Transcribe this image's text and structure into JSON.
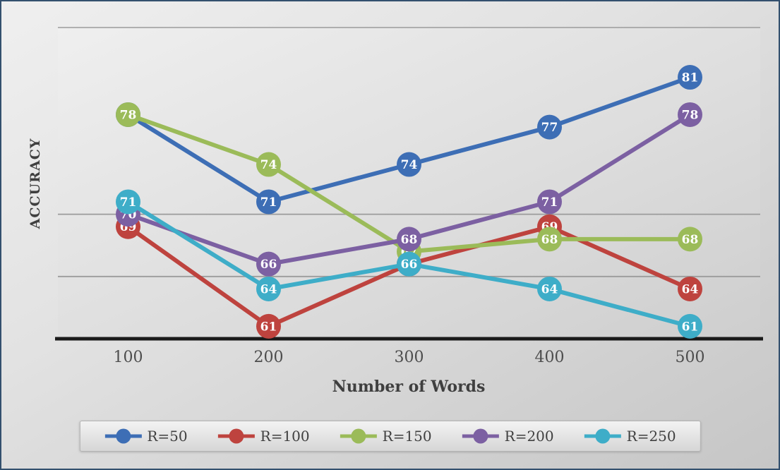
{
  "chart_data": {
    "type": "line",
    "title": "",
    "xlabel": "Number of Words",
    "ylabel": "ACCURACY",
    "categories": [
      "100",
      "200",
      "300",
      "400",
      "500"
    ],
    "series": [
      {
        "name": "R=50",
        "color": "#3d6eb5",
        "values": [
          78,
          71,
          74,
          77,
          81
        ]
      },
      {
        "name": "R=100",
        "color": "#be433e",
        "values": [
          69,
          61,
          66,
          69,
          64
        ]
      },
      {
        "name": "R=150",
        "color": "#9bbb59",
        "values": [
          78,
          74,
          67,
          68,
          68
        ]
      },
      {
        "name": "R=200",
        "color": "#7c60a2",
        "values": [
          70,
          66,
          68,
          71,
          78
        ]
      },
      {
        "name": "R=250",
        "color": "#3eadc8",
        "values": [
          71,
          64,
          66,
          64,
          61
        ]
      }
    ],
    "ylim": [
      60,
      85
    ],
    "gridlines": [
      65,
      70
    ],
    "grid": "horizontal",
    "legend_position": "bottom",
    "marker_labels": true,
    "colors": {
      "gridline": "#9b9b9b",
      "axis_line": "#1a1a1a",
      "tick_label": "#4d4d4d",
      "value_label": "#ffffff"
    }
  }
}
